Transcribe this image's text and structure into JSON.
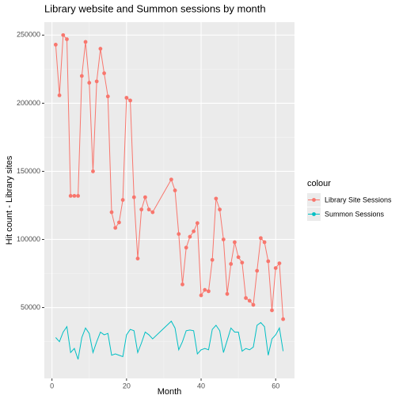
{
  "chart_data": {
    "type": "line",
    "title": "Library website and Summon sessions by month",
    "x_label": "Month",
    "y_label": "Hit count - Library sites",
    "legend_title": "colour",
    "legend_position": "right",
    "grid": true,
    "x": [
      1,
      2,
      3,
      4,
      5,
      6,
      7,
      8,
      9,
      10,
      11,
      12,
      13,
      14,
      15,
      16,
      17,
      18,
      19,
      20,
      21,
      22,
      23,
      24,
      25,
      26,
      27,
      32,
      33,
      34,
      35,
      36,
      37,
      38,
      39,
      40,
      41,
      42,
      43,
      44,
      45,
      46,
      47,
      48,
      49,
      50,
      51,
      52,
      53,
      54,
      55,
      56,
      57,
      58,
      59,
      60,
      61,
      62
    ],
    "series": [
      {
        "name": "Library Site Sessions",
        "color": "#F8766D",
        "markers": true,
        "values": [
          243000,
          205800,
          250000,
          247000,
          132000,
          132000,
          132000,
          220000,
          245000,
          215000,
          150000,
          216000,
          240000,
          222000,
          205000,
          120000,
          108500,
          112500,
          129000,
          204000,
          202000,
          131000,
          86000,
          122000,
          131000,
          122000,
          120000,
          144000,
          136000,
          104000,
          67000,
          94000,
          102000,
          106000,
          112000,
          59000,
          63000,
          62000,
          85000,
          130000,
          122000,
          100000,
          60000,
          82000,
          98000,
          87000,
          83000,
          57000,
          55000,
          52000,
          77000,
          101000,
          98000,
          84000,
          48000,
          79000,
          82500,
          41500
        ]
      },
      {
        "name": "Summon Sessions",
        "color": "#00BFC4",
        "markers": false,
        "values": [
          28000,
          25000,
          32000,
          36000,
          17000,
          20000,
          12000,
          28000,
          35000,
          31000,
          17000,
          25000,
          32000,
          30000,
          31000,
          15000,
          16000,
          15000,
          14000,
          30000,
          34000,
          33000,
          17000,
          24000,
          32000,
          30000,
          27000,
          40000,
          35000,
          19000,
          25000,
          33000,
          33500,
          33000,
          16000,
          19000,
          20000,
          19000,
          34000,
          37000,
          33000,
          17000,
          26000,
          35000,
          32000,
          32000,
          18000,
          20000,
          19000,
          21000,
          37000,
          39000,
          36000,
          15000,
          27000,
          30000,
          35000,
          18000
        ]
      }
    ],
    "xlim": [
      -2.05,
      65.05
    ],
    "xticks": [
      0,
      20,
      40,
      60
    ],
    "ylim": [
      -2000,
      259500
    ],
    "yticks": [
      50000,
      100000,
      150000,
      200000,
      250000
    ]
  }
}
